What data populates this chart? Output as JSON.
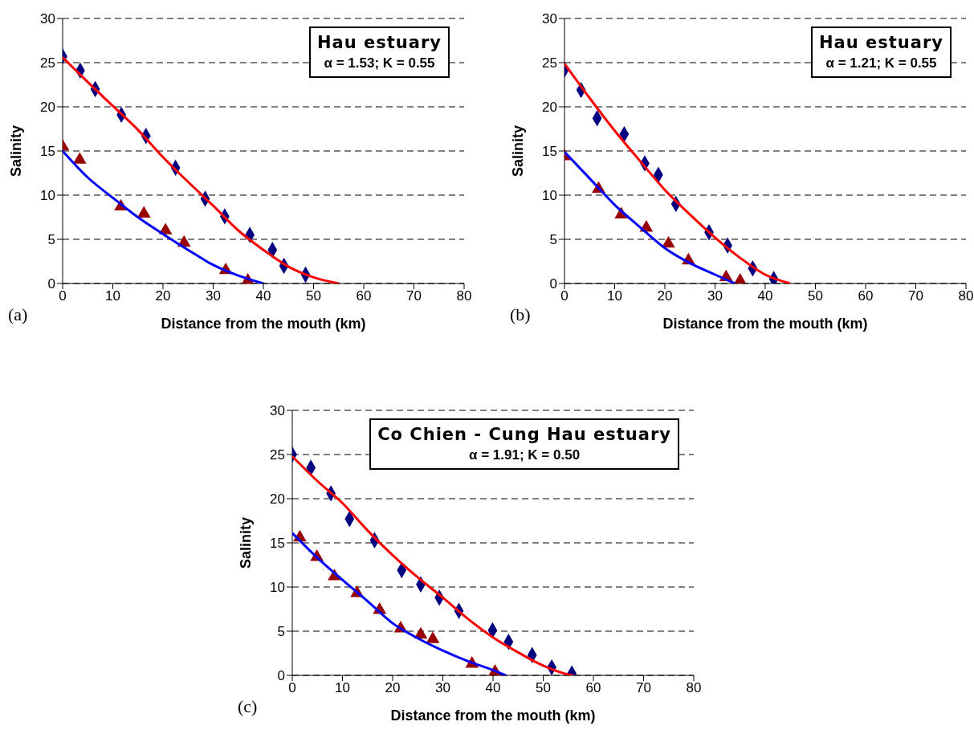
{
  "chart_data": [
    {
      "type": "scatter",
      "title": "Hau estuary",
      "xlabel": "Distance from the mouth (km)",
      "ylabel": "Salinity",
      "annotations": [
        "α = 1.53; K = 0.55",
        "(a)"
      ],
      "xlim": [
        0,
        80
      ],
      "xticks": [
        0,
        10,
        20,
        30,
        40,
        50,
        60,
        70,
        80
      ],
      "ylim": [
        0,
        30
      ],
      "yticks": [
        0,
        5,
        10,
        15,
        20,
        25,
        30
      ],
      "grid": "y",
      "series": [
        {
          "marker": "diamond",
          "color": "#000080",
          "x": [
            0,
            3.5,
            6.5,
            11.7,
            16.6,
            22.5,
            28.4,
            32.3,
            37.3,
            41.8,
            44.1,
            48.4
          ],
          "values": [
            25.7,
            24.1,
            22.0,
            19.1,
            16.7,
            13.1,
            9.6,
            7.6,
            5.5,
            3.8,
            2.0,
            1.0
          ]
        },
        {
          "marker": "triangle",
          "color": "#990000",
          "x": [
            0,
            3.4,
            11.6,
            16.2,
            20.5,
            24.2,
            32.5,
            36.9
          ],
          "values": [
            15.5,
            14.0,
            8.7,
            7.9,
            6.0,
            4.6,
            1.5,
            0.3
          ]
        },
        {
          "type": "line",
          "marker": "none",
          "color": "#ff0000",
          "x": [
            0,
            5,
            10,
            15,
            20,
            25,
            30,
            35,
            40,
            45,
            50,
            55
          ],
          "values": [
            25.6,
            22.8,
            20.1,
            17.4,
            14.3,
            11.5,
            8.8,
            6.0,
            3.8,
            1.9,
            0.7,
            0
          ]
        },
        {
          "type": "line",
          "marker": "none",
          "color": "#0000ff",
          "x": [
            0,
            5,
            10,
            15,
            20,
            25,
            30,
            35,
            40
          ],
          "values": [
            15.0,
            12.0,
            9.7,
            7.5,
            5.6,
            3.8,
            2.1,
            0.9,
            0
          ]
        }
      ]
    },
    {
      "type": "scatter",
      "title": "Hau estuary",
      "xlabel": "Distance from the mouth (km)",
      "ylabel": "Salinity",
      "annotations": [
        "α = 1.21; K = 0.55",
        "(b)"
      ],
      "xlim": [
        0,
        80
      ],
      "xticks": [
        0,
        10,
        20,
        30,
        40,
        50,
        60,
        70,
        80
      ],
      "ylim": [
        0,
        30
      ],
      "yticks": [
        0,
        5,
        10,
        15,
        20,
        25,
        30
      ],
      "grid": "y",
      "series": [
        {
          "marker": "diamond",
          "color": "#000080",
          "x": [
            0,
            3.3,
            6.5,
            11.9,
            16.0,
            18.7,
            22.2,
            28.8,
            32.5,
            37.5,
            41.7
          ],
          "values": [
            24.2,
            21.9,
            18.7,
            16.9,
            13.6,
            12.3,
            9.0,
            5.8,
            4.3,
            1.7,
            0.5
          ]
        },
        {
          "marker": "triangle",
          "color": "#990000",
          "x": [
            0,
            6.8,
            11.3,
            16.3,
            20.7,
            24.7,
            32.2,
            35.0
          ],
          "values": [
            14.4,
            10.7,
            7.8,
            6.3,
            4.5,
            2.6,
            0.7,
            0.3
          ]
        },
        {
          "type": "line",
          "marker": "none",
          "color": "#ff0000",
          "x": [
            0,
            5,
            10,
            15,
            20,
            25,
            30,
            35,
            40,
            45
          ],
          "values": [
            24.9,
            21.0,
            17.3,
            13.9,
            10.6,
            7.8,
            5.2,
            2.9,
            1.0,
            0
          ]
        },
        {
          "type": "line",
          "marker": "none",
          "color": "#0000ff",
          "x": [
            0,
            5,
            10,
            15,
            20,
            25,
            30,
            34
          ],
          "values": [
            14.9,
            11.9,
            8.9,
            6.4,
            4.0,
            2.3,
            1.0,
            0
          ]
        }
      ]
    },
    {
      "type": "scatter",
      "title": "Co Chien - Cung Hau estuary",
      "xlabel": "Distance from the mouth (km)",
      "ylabel": "Salinity",
      "annotations": [
        "α = 1.91; K = 0.50",
        "(c)"
      ],
      "xlim": [
        0,
        80
      ],
      "xticks": [
        0,
        10,
        20,
        30,
        40,
        50,
        60,
        70,
        80
      ],
      "ylim": [
        0,
        30
      ],
      "yticks": [
        0,
        5,
        10,
        15,
        20,
        25,
        30
      ],
      "grid": "y",
      "series": [
        {
          "marker": "diamond",
          "color": "#000080",
          "x": [
            0,
            3.7,
            7.7,
            11.4,
            16.4,
            21.8,
            25.6,
            29.3,
            33.2,
            39.9,
            43.1,
            47.8,
            51.7,
            55.7
          ],
          "values": [
            25.0,
            23.5,
            20.6,
            17.7,
            15.3,
            11.9,
            10.3,
            8.8,
            7.3,
            5.1,
            3.8,
            2.3,
            0.9,
            0.2
          ]
        },
        {
          "marker": "triangle",
          "color": "#990000",
          "x": [
            1.5,
            4.9,
            8.4,
            12.9,
            17.4,
            21.6,
            25.6,
            28.0,
            35.8,
            40.4
          ],
          "values": [
            15.6,
            13.4,
            11.2,
            9.3,
            7.4,
            5.3,
            4.6,
            4.1,
            1.3,
            0.4
          ]
        },
        {
          "type": "line",
          "marker": "none",
          "color": "#ff0000",
          "x": [
            0,
            5,
            10,
            15,
            20,
            25,
            30,
            35,
            40,
            45,
            50,
            55,
            56
          ],
          "values": [
            24.8,
            22.0,
            19.5,
            16.4,
            13.6,
            11.1,
            8.8,
            6.4,
            4.3,
            2.6,
            1.1,
            0.1,
            0
          ]
        },
        {
          "type": "line",
          "marker": "none",
          "color": "#0000ff",
          "x": [
            0,
            5,
            10,
            15,
            20,
            25,
            30,
            35,
            40,
            42.5
          ],
          "values": [
            16.1,
            13.3,
            10.8,
            8.4,
            5.9,
            4.2,
            2.8,
            1.6,
            0.6,
            0
          ]
        }
      ]
    }
  ]
}
